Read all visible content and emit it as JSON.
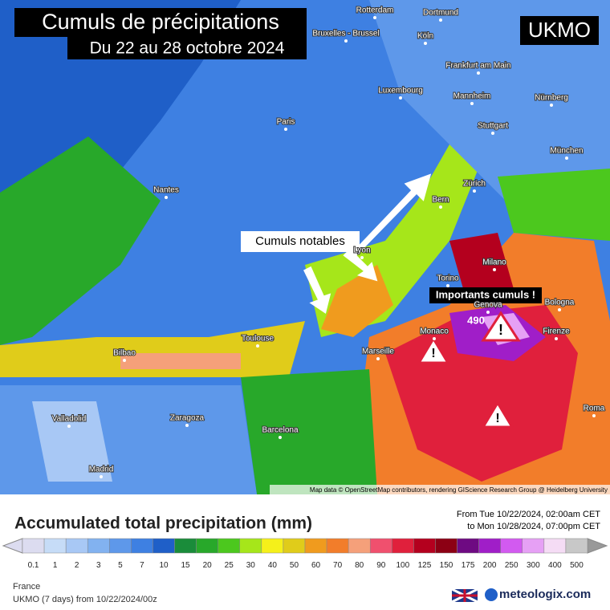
{
  "header": {
    "title": "Cumuls de précipitations",
    "subtitle": "Du 22 au 28 octobre 2024",
    "model": "UKMO"
  },
  "annotations": {
    "notable": "Cumuls notables",
    "important": "Importants cumuls !",
    "peak": 490
  },
  "cities": [
    "Rotterdam",
    "Dortmund",
    "Bruxelles - Brussel",
    "Köln",
    "Frankfurt am Main",
    "Luxembourg",
    "Mannheim",
    "Nürnberg",
    "Paris",
    "Stuttgart",
    "München",
    "Nantes",
    "Zürich",
    "Bern",
    "Lyon",
    "Milano",
    "Torino",
    "Genova",
    "Bologna",
    "Monaco",
    "Firenze",
    "Toulouse",
    "Marseille",
    "Bilbao",
    "Valladolid",
    "Zaragoza",
    "Barcelona",
    "Madrid",
    "Roma"
  ],
  "attribution": "Map data © OpenStreetMap contributors, rendering GIScience Research Group @ Heidelberg University",
  "legend": {
    "title": "Accumulated total precipitation (mm)",
    "period_from": "From Tue 10/22/2024, 02:00am CET",
    "period_to": "to Mon 10/28/2024, 07:00pm CET",
    "ticks": [
      0.1,
      1,
      2,
      3,
      5,
      7,
      10,
      15,
      20,
      25,
      30,
      40,
      50,
      60,
      70,
      80,
      90,
      100,
      125,
      150,
      175,
      200,
      250,
      300,
      400,
      500
    ],
    "colors": [
      "#dcdcf0",
      "#c6dcf7",
      "#a8c8f5",
      "#82b2f0",
      "#5e98ea",
      "#3e80e2",
      "#1f5fc8",
      "#1a8c3a",
      "#28a82a",
      "#4cc81e",
      "#a6e61a",
      "#f5f01a",
      "#e0cc1a",
      "#f09b1e",
      "#f27d2a",
      "#f5a07a",
      "#f0506e",
      "#e0203c",
      "#b4001e",
      "#8c0014",
      "#6e0a82",
      "#a01ec8",
      "#d25af0",
      "#e6a0f5",
      "#f5dcf5",
      "#c8c8c8"
    ]
  },
  "footer": {
    "region": "France",
    "run": "UKMO (7 days) from 10/22/2024/00z",
    "brand": "meteologix.com"
  }
}
